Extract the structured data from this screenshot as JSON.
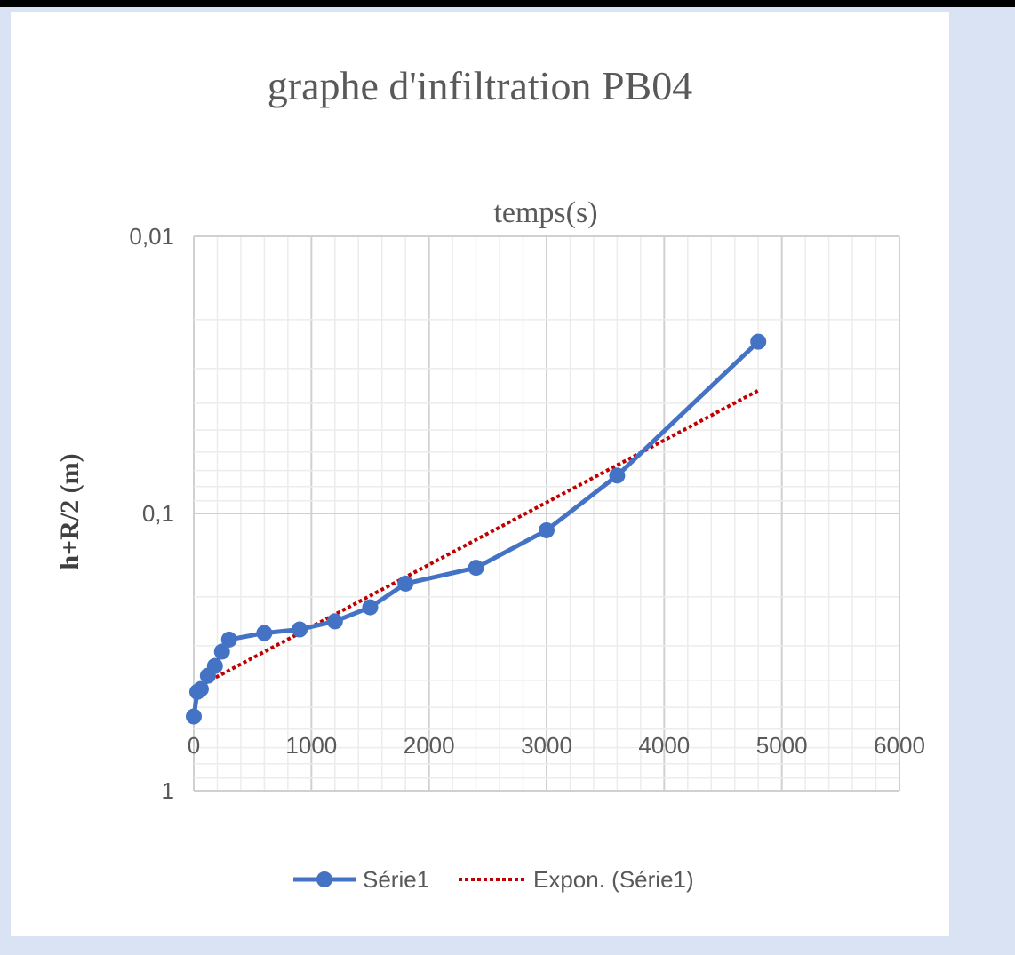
{
  "chart_data": {
    "type": "scatter",
    "title": "graphe d'infiltration PB04",
    "xlabel": "temps(s)",
    "ylabel": "h+R/2 (m)",
    "x_axis_position": "top",
    "xlim": [
      0,
      6000
    ],
    "x_ticks": [
      0,
      1000,
      2000,
      3000,
      4000,
      5000,
      6000
    ],
    "x_tick_labels": [
      "0",
      "1000",
      "2000",
      "3000",
      "4000",
      "5000",
      "6000"
    ],
    "yscale": "log",
    "y_reversed": true,
    "ylim": [
      0.01,
      1
    ],
    "y_ticks": [
      0.01,
      0.1,
      1
    ],
    "y_tick_labels": [
      "0,01",
      "0,1",
      "1"
    ],
    "grid": true,
    "legend_position": "bottom",
    "series": [
      {
        "name": "Série1",
        "style": "line-markers",
        "color": "#4472c4",
        "x": [
          0,
          30,
          60,
          120,
          180,
          240,
          300,
          600,
          900,
          1200,
          1500,
          1800,
          2400,
          3000,
          3600,
          4800
        ],
        "y": [
          0.54,
          0.44,
          0.43,
          0.385,
          0.355,
          0.315,
          0.285,
          0.27,
          0.262,
          0.245,
          0.218,
          0.179,
          0.157,
          0.115,
          0.073,
          0.024
        ]
      },
      {
        "name": "Expon. (Série1)",
        "style": "dotted-trendline",
        "color": "#c00000",
        "x": [
          0,
          4800
        ],
        "y": [
          0.43,
          0.036
        ]
      }
    ]
  }
}
